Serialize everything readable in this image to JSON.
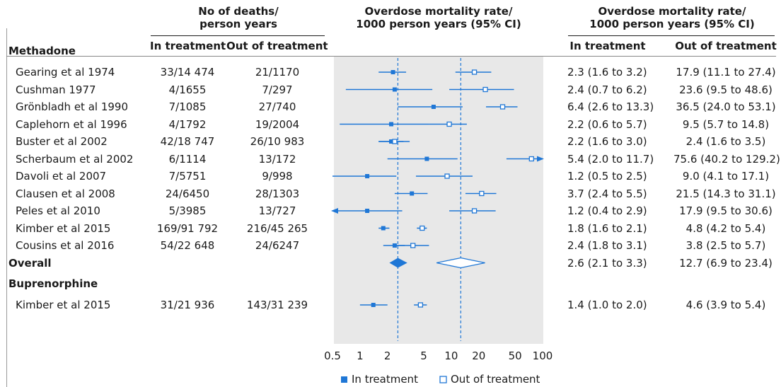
{
  "chart_data": {
    "type": "forest",
    "x_scale": "log",
    "xlim": [
      0.5,
      100
    ],
    "x_ticks": [
      "0.5",
      "1",
      "2",
      "5",
      "10",
      "20",
      "50",
      "100"
    ],
    "x_tick_values": [
      0.5,
      1,
      2,
      5,
      10,
      20,
      50,
      100
    ],
    "headers": {
      "deaths_group": "No of deaths/\nperson years",
      "deaths_in": "In treatment",
      "deaths_out": "Out of treatment",
      "plot_title": "Overdose mortality rate/\n1000 person years (95% CI)",
      "ci_group": "Overdose mortality rate/\n1000 person years (95% CI)",
      "ci_in": "In treatment",
      "ci_out": "Out of treatment"
    },
    "legend": {
      "in_label": "In treatment",
      "out_label": "Out of treatment",
      "placement": "bottom"
    },
    "colors": {
      "marker": "#1f77d6",
      "plot_bg": "#e8e8e8"
    },
    "sections": [
      {
        "label": "Methadone",
        "studies": [
          {
            "study": "Gearing et al 1974",
            "deaths_in": "33/14 474",
            "deaths_out": "21/1170",
            "ci_in_text": "2.3 (1.6 to 3.2)",
            "ci_out_text": "17.9 (11.1 to 27.4)",
            "in": [
              2.3,
              1.6,
              3.2
            ],
            "out": [
              17.9,
              11.1,
              27.4
            ]
          },
          {
            "study": "Cushman 1977",
            "deaths_in": "4/1655",
            "deaths_out": "7/297",
            "ci_in_text": "2.4 (0.7 to 6.2)",
            "ci_out_text": "23.6 (9.5 to 48.6)",
            "in": [
              2.4,
              0.7,
              6.2
            ],
            "out": [
              23.6,
              9.5,
              48.6
            ]
          },
          {
            "study": "Grönbladh et al 1990",
            "deaths_in": "7/1085",
            "deaths_out": "27/740",
            "ci_in_text": "6.4 (2.6 to 13.3)",
            "ci_out_text": "36.5 (24.0 to 53.1)",
            "in": [
              6.4,
              2.6,
              13.3
            ],
            "out": [
              36.5,
              24.0,
              53.1
            ]
          },
          {
            "study": "Caplehorn et al 1996",
            "deaths_in": "4/1792",
            "deaths_out": "19/2004",
            "ci_in_text": "2.2 (0.6 to 5.7)",
            "ci_out_text": "9.5 (5.7 to 14.8)",
            "in": [
              2.2,
              0.6,
              5.7
            ],
            "out": [
              9.5,
              5.7,
              14.8
            ]
          },
          {
            "study": "Buster et al 2002",
            "deaths_in": "42/18 747",
            "deaths_out": "26/10 983",
            "ci_in_text": "2.2 (1.6 to 3.0)",
            "ci_out_text": "2.4 (1.6 to 3.5)",
            "in": [
              2.2,
              1.6,
              3.0
            ],
            "out": [
              2.4,
              1.6,
              3.5
            ]
          },
          {
            "study": "Scherbaum et al 2002",
            "deaths_in": "6/1114",
            "deaths_out": "13/172",
            "ci_in_text": "5.4 (2.0 to 11.7)",
            "ci_out_text": "75.6 (40.2 to 129.2)",
            "in": [
              5.4,
              2.0,
              11.7
            ],
            "out": [
              75.6,
              40.2,
              129.2
            ]
          },
          {
            "study": "Davoli et al 2007",
            "deaths_in": "7/5751",
            "deaths_out": "9/998",
            "ci_in_text": "1.2 (0.5 to 2.5)",
            "ci_out_text": "9.0 (4.1 to 17.1)",
            "in": [
              1.2,
              0.5,
              2.5
            ],
            "out": [
              9.0,
              4.1,
              17.1
            ]
          },
          {
            "study": "Clausen et al 2008",
            "deaths_in": "24/6450",
            "deaths_out": "28/1303",
            "ci_in_text": "3.7 (2.4 to 5.5)",
            "ci_out_text": "21.5 (14.3 to 31.1)",
            "in": [
              3.7,
              2.4,
              5.5
            ],
            "out": [
              21.5,
              14.3,
              31.1
            ]
          },
          {
            "study": "Peles et al 2010",
            "deaths_in": "5/3985",
            "deaths_out": "13/727",
            "ci_in_text": "1.2 (0.4 to 2.9)",
            "ci_out_text": "17.9 (9.5 to 30.6)",
            "in": [
              1.2,
              0.4,
              2.9
            ],
            "out": [
              17.9,
              9.5,
              30.6
            ]
          },
          {
            "study": "Kimber et al 2015",
            "deaths_in": "169/91 792",
            "deaths_out": "216/45 265",
            "ci_in_text": "1.8 (1.6 to 2.1)",
            "ci_out_text": "4.8 (4.2 to 5.4)",
            "in": [
              1.8,
              1.6,
              2.1
            ],
            "out": [
              4.8,
              4.2,
              5.4
            ]
          },
          {
            "study": "Cousins et al 2016",
            "deaths_in": "54/22 648",
            "deaths_out": "24/6247",
            "ci_in_text": "2.4 (1.8 to 3.1)",
            "ci_out_text": "3.8 (2.5 to 5.7)",
            "in": [
              2.4,
              1.8,
              3.1
            ],
            "out": [
              3.8,
              2.5,
              5.7
            ]
          }
        ],
        "overall": {
          "label": "Overall",
          "ci_in_text": "2.6 (2.1 to 3.3)",
          "ci_out_text": "12.7 (6.9 to 23.4)",
          "in": [
            2.6,
            2.1,
            3.3
          ],
          "out": [
            12.7,
            6.9,
            23.4
          ]
        }
      },
      {
        "label": "Buprenorphine",
        "studies": [
          {
            "study": "Kimber et al 2015",
            "deaths_in": "31/21 936",
            "deaths_out": "143/31 239",
            "ci_in_text": "1.4 (1.0 to 2.0)",
            "ci_out_text": "4.6 (3.9 to 5.4)",
            "in": [
              1.4,
              1.0,
              2.0
            ],
            "out": [
              4.6,
              3.9,
              5.4
            ]
          }
        ]
      }
    ]
  }
}
